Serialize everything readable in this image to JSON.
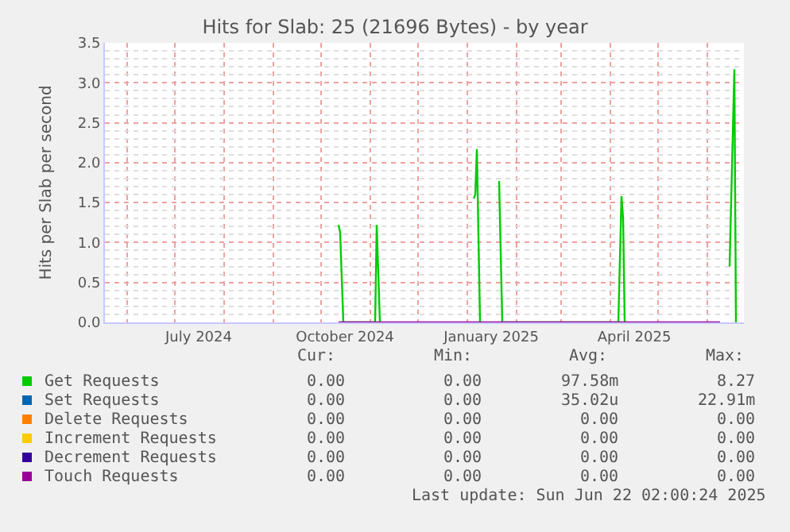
{
  "chart_data": {
    "type": "line",
    "title": "Hits for Slab: 25 (21696 Bytes) - by year",
    "ylabel": "Hits per Slab per second",
    "xlim": [
      "2024-05-18",
      "2025-06-24"
    ],
    "xticks": [
      {
        "value": "2024-07-16",
        "label": "July 2024"
      },
      {
        "value": "2024-10-16",
        "label": "October 2024"
      },
      {
        "value": "2025-01-16",
        "label": "January 2025"
      },
      {
        "value": "2025-04-16",
        "label": "April 2025"
      }
    ],
    "ylim": [
      0,
      3.5
    ],
    "yticks": [
      {
        "value": 0,
        "label": "0.0"
      },
      {
        "value": 0.5,
        "label": "0.5"
      },
      {
        "value": 1,
        "label": "1.0"
      },
      {
        "value": 1.5,
        "label": "1.5"
      },
      {
        "value": 2,
        "label": "2.0"
      },
      {
        "value": 2.5,
        "label": "2.5"
      },
      {
        "value": 3,
        "label": "3.0"
      },
      {
        "value": 3.5,
        "label": "3.5"
      }
    ],
    "grid": true,
    "legend": "bottom",
    "series": [
      {
        "name": "Get Requests",
        "color": "#00cc00",
        "x": [
          "2024-10-12",
          "2024-10-13",
          "2024-10-15",
          "2024-11-04",
          "2024-11-05",
          "2024-11-07",
          "2024-11-08",
          "2025-01-05",
          "2025-01-06",
          "2025-01-07",
          "2025-01-09",
          "2025-01-10",
          "2025-01-21",
          "2025-01-23",
          "2025-04-06",
          "2025-04-08",
          "2025-04-09",
          "2025-04-10",
          "2025-04-11",
          "2025-06-15",
          "2025-06-18",
          "2025-06-19"
        ],
        "values": [
          1.22,
          1.12,
          0,
          0,
          1.22,
          0,
          null,
          1.55,
          1.6,
          2.17,
          0,
          null,
          1.77,
          0,
          0,
          1.58,
          1.3,
          0,
          null,
          0.7,
          3.17,
          0
        ]
      },
      {
        "name": "Set Requests",
        "color": "#0066b3",
        "values": [
          null
        ]
      },
      {
        "name": "Delete Requests",
        "color": "#ff8000",
        "values": [
          null
        ]
      },
      {
        "name": "Increment Requests",
        "color": "#ffcc00",
        "values": [
          null
        ]
      },
      {
        "name": "Decrement Requests",
        "color": "#330099",
        "values": [
          null
        ]
      },
      {
        "name": "Touch Requests",
        "color": "#990099",
        "x": [
          "2024-10-12",
          "2025-06-09"
        ],
        "values": [
          0,
          0
        ]
      }
    ],
    "annotations": [
      "Cur:",
      "Min:",
      "Avg:",
      "Max:",
      "0.00",
      "0.00",
      "97.58m",
      "8.27",
      "0.00",
      "0.00",
      "35.02u",
      "22.91m",
      "0.00",
      "0.00",
      "0.00",
      "0.00",
      "0.00",
      "0.00",
      "0.00",
      "0.00",
      "0.00",
      "0.00",
      "0.00",
      "0.00",
      "0.00",
      "0.00",
      "0.00",
      "0.00",
      "Last update: Sun Jun 22 02:00:24 2025"
    ]
  }
}
